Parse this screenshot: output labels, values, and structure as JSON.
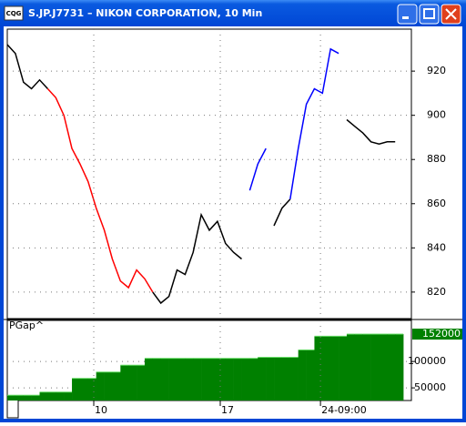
{
  "window": {
    "title": "S.JP.J7731 – NIKON CORPORATION, 10 Min",
    "icon": "CQG"
  },
  "chart_data": [
    {
      "type": "line",
      "x": [
        0,
        2,
        4,
        6,
        8,
        10,
        12,
        14,
        16,
        18,
        20,
        22,
        24,
        26,
        28,
        30,
        32,
        34,
        36,
        38,
        40,
        42,
        44,
        46,
        48,
        50,
        52,
        54,
        56,
        58,
        60,
        62,
        64,
        66,
        68,
        70,
        72,
        74,
        76,
        78,
        80,
        82,
        84,
        86,
        88,
        90,
        92,
        94,
        96
      ],
      "series": [
        {
          "color": "#000000",
          "values": [
            932,
            928,
            915,
            912,
            916,
            912,
            null,
            null,
            null,
            null,
            null,
            null,
            null,
            null,
            null,
            null,
            null,
            null,
            820,
            815,
            818,
            830,
            828,
            838,
            855,
            848,
            852,
            842,
            838,
            835,
            null,
            null,
            null,
            850,
            858,
            862,
            null,
            null,
            null,
            null,
            null,
            null,
            898,
            895,
            892,
            888,
            887,
            888,
            888
          ]
        },
        {
          "color": "#ff0000",
          "values": [
            null,
            null,
            null,
            null,
            null,
            912,
            908,
            900,
            885,
            878,
            870,
            858,
            848,
            835,
            825,
            822,
            830,
            826,
            820,
            null,
            null,
            null,
            null,
            null,
            null,
            null,
            null,
            null,
            null,
            null,
            null,
            null,
            null,
            null,
            null,
            null,
            null,
            null,
            null,
            null,
            null,
            null,
            null,
            null,
            null,
            null,
            null,
            null,
            null
          ]
        },
        {
          "color": "#0000ff",
          "values": [
            null,
            null,
            null,
            null,
            null,
            null,
            null,
            null,
            null,
            null,
            null,
            null,
            null,
            null,
            null,
            null,
            null,
            null,
            null,
            null,
            null,
            null,
            null,
            null,
            null,
            null,
            null,
            null,
            null,
            null,
            866,
            878,
            885,
            null,
            null,
            862,
            885,
            905,
            912,
            910,
            930,
            928,
            null,
            null,
            null,
            null,
            null,
            null,
            null
          ]
        }
      ],
      "xlim": [
        0,
        100
      ],
      "ylim": [
        808,
        939
      ],
      "yticks": [
        820,
        840,
        860,
        880,
        900,
        920
      ],
      "grid": true
    },
    {
      "type": "step_area",
      "title": "PGap^",
      "x": [
        0,
        2,
        4,
        6,
        8,
        10,
        12,
        14,
        16,
        18,
        20,
        22,
        24,
        26,
        28,
        30,
        32,
        34,
        36,
        38,
        40,
        42,
        44,
        46,
        48,
        50,
        52,
        54,
        56,
        58,
        60,
        62,
        64,
        66,
        68,
        70,
        72,
        74,
        76,
        78,
        80,
        82,
        84,
        86,
        88,
        90,
        92,
        94,
        96
      ],
      "values": [
        36000,
        36000,
        36000,
        36000,
        42000,
        42000,
        42000,
        42000,
        68000,
        68000,
        68000,
        80000,
        80000,
        80000,
        93000,
        93000,
        93000,
        106000,
        106000,
        106000,
        106000,
        106000,
        106000,
        106000,
        106000,
        106000,
        106000,
        106000,
        106000,
        106000,
        106000,
        108000,
        108000,
        108000,
        108000,
        108000,
        122000,
        122000,
        148000,
        148000,
        148000,
        148000,
        152000,
        152000,
        152000,
        152000,
        152000,
        152000,
        152000
      ],
      "color": "#008000",
      "edge_color": "#66dd66",
      "xlim": [
        0,
        100
      ],
      "ylim": [
        26000,
        178000
      ],
      "yticks": [
        50000,
        100000
      ],
      "xticks": [
        {
          "value": 21.4,
          "label": "10"
        },
        {
          "value": 52.7,
          "label": "17"
        },
        {
          "value": 77.5,
          "label": "24-09:00"
        }
      ],
      "grid": true
    }
  ]
}
